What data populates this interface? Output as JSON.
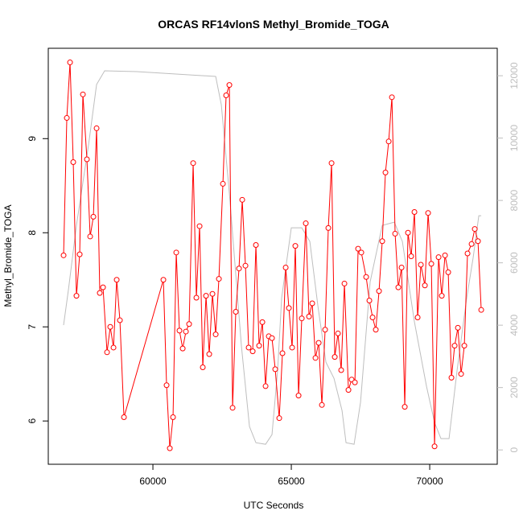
{
  "chart_data": {
    "type": "line",
    "title": "ORCAS RF14vlonS Methyl_Bromide_TOGA",
    "xlabel": "UTC Seconds",
    "ylabel": "Methyl_Bromide_TOGA",
    "xlim": [
      56220,
      72440
    ],
    "xticks": [
      60000,
      65000,
      70000
    ],
    "ylim": [
      5.54,
      9.96
    ],
    "yticks": [
      6,
      7,
      8,
      9
    ],
    "y2lim": [
      -460,
      12880
    ],
    "y2ticks": [
      0,
      2000,
      4000,
      6000,
      8000,
      10000,
      12000
    ],
    "y2color": "#bebebe",
    "series": [
      {
        "color": "#ff0000",
        "marker": "circle",
        "x": [
          56773,
          56890,
          57006,
          57122,
          57238,
          57355,
          57471,
          57616,
          57733,
          57849,
          57965,
          58081,
          58198,
          58343,
          58459,
          58576,
          58692,
          58808,
          58954,
          60378,
          60494,
          60611,
          60727,
          60843,
          60959,
          61076,
          61192,
          61308,
          61454,
          61570,
          61686,
          61802,
          61919,
          62035,
          62151,
          62268,
          62384,
          62529,
          62645,
          62762,
          62878,
          62994,
          63111,
          63227,
          63343,
          63459,
          63605,
          63721,
          63837,
          63954,
          64070,
          64186,
          64302,
          64419,
          64564,
          64680,
          64797,
          64913,
          65029,
          65145,
          65262,
          65378,
          65523,
          65640,
          65756,
          65872,
          65989,
          66105,
          66221,
          66337,
          66454,
          66570,
          66686,
          66802,
          66919,
          67064,
          67180,
          67297,
          67413,
          67529,
          67704,
          67820,
          67936,
          68052,
          68169,
          68285,
          68401,
          68518,
          68634,
          68750,
          68866,
          68983,
          69099,
          69215,
          69331,
          69448,
          69564,
          69680,
          69826,
          69942,
          70058,
          70175,
          70320,
          70436,
          70553,
          70669,
          70785,
          70901,
          71018,
          71134,
          71250,
          71366,
          71512,
          71628,
          71744,
          71861
        ],
        "values": [
          7.76,
          9.22,
          9.81,
          8.75,
          7.33,
          7.77,
          9.47,
          8.78,
          7.96,
          8.17,
          9.11,
          7.36,
          7.42,
          6.73,
          7.0,
          6.78,
          7.5,
          7.07,
          6.04,
          7.5,
          6.38,
          5.71,
          6.04,
          7.79,
          6.96,
          6.77,
          6.95,
          7.03,
          8.74,
          7.31,
          8.07,
          6.57,
          7.33,
          6.71,
          7.35,
          6.92,
          7.51,
          8.52,
          9.46,
          9.57,
          6.14,
          7.16,
          7.62,
          8.35,
          7.65,
          6.78,
          6.74,
          7.87,
          6.8,
          7.05,
          6.37,
          6.9,
          6.88,
          6.55,
          6.03,
          6.72,
          7.63,
          7.2,
          6.78,
          7.86,
          6.27,
          7.09,
          8.1,
          7.11,
          7.25,
          6.67,
          6.83,
          6.17,
          6.97,
          8.05,
          8.74,
          6.68,
          6.93,
          6.54,
          7.46,
          6.33,
          6.44,
          6.41,
          7.83,
          7.79,
          7.53,
          7.28,
          7.1,
          6.97,
          7.38,
          7.91,
          8.64,
          8.97,
          9.44,
          7.99,
          7.42,
          7.63,
          6.15,
          8.0,
          7.75,
          8.22,
          7.1,
          7.66,
          7.44,
          8.21,
          7.67,
          5.73,
          7.74,
          7.33,
          7.76,
          7.58,
          6.46,
          6.8,
          6.99,
          6.5,
          6.8,
          7.78,
          7.88,
          8.04,
          7.91,
          7.18
        ]
      },
      {
        "color": "#bebebe",
        "axis": "y2",
        "x": [
          56773,
          56948,
          57238,
          57675,
          57965,
          58256,
          59419,
          62268,
          62471,
          62762,
          63198,
          63489,
          63721,
          64070,
          64302,
          64506,
          64651,
          65000,
          65378,
          65669,
          65960,
          66250,
          66541,
          66832,
          66977,
          67268,
          67500,
          67849,
          68285,
          68721,
          69012,
          69448,
          69884,
          70175,
          70407,
          70698,
          70989,
          71338,
          71570,
          71774,
          71861
        ],
        "values": [
          4001,
          5136,
          7201,
          9782,
          11718,
          12157,
          12131,
          11976,
          11072,
          8233,
          3329,
          748,
          232,
          181,
          490,
          2555,
          4878,
          7124,
          7124,
          6685,
          4620,
          2813,
          2297,
          1265,
          232,
          181,
          1523,
          5394,
          7201,
          7304,
          6685,
          4104,
          2039,
          878,
          361,
          361,
          2555,
          4878,
          6169,
          7511,
          7511
        ]
      }
    ]
  }
}
